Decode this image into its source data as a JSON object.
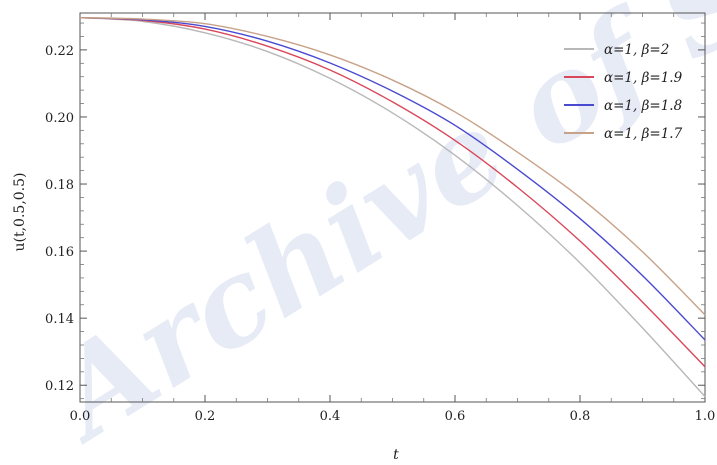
{
  "chart_data": {
    "type": "line",
    "xlabel": "t",
    "ylabel": "u(t,0.5,0.5)",
    "xlim": [
      0.0,
      1.0
    ],
    "ylim": [
      0.115,
      0.231
    ],
    "x_ticks": [
      "0.0",
      "0.2",
      "0.4",
      "0.6",
      "0.8",
      "1.0"
    ],
    "x_tick_values": [
      0.0,
      0.2,
      0.4,
      0.6,
      0.8,
      1.0
    ],
    "y_ticks": [
      "0.12",
      "0.14",
      "0.16",
      "0.18",
      "0.20",
      "0.22"
    ],
    "y_tick_values": [
      0.12,
      0.14,
      0.16,
      0.18,
      0.2,
      0.22
    ],
    "grid": false,
    "legend_position": "top-right",
    "x": [
      0.0,
      0.1,
      0.2,
      0.3,
      0.4,
      0.5,
      0.6,
      0.7,
      0.8,
      0.9,
      1.0
    ],
    "series": [
      {
        "name": "α=1, β=2",
        "color": "#b8b8b8",
        "values": [
          0.2296,
          0.2285,
          0.2251,
          0.2195,
          0.2115,
          0.2012,
          0.1886,
          0.1736,
          0.1565,
          0.1371,
          0.1166
        ]
      },
      {
        "name": "α=1, β=1.9",
        "color": "#d9485a",
        "values": [
          0.2296,
          0.2288,
          0.2262,
          0.2211,
          0.214,
          0.2045,
          0.193,
          0.179,
          0.163,
          0.1448,
          0.1255
        ]
      },
      {
        "name": "α=1, β=1.8",
        "color": "#4a4ad0",
        "values": [
          0.2296,
          0.229,
          0.227,
          0.2226,
          0.2161,
          0.2077,
          0.1975,
          0.1844,
          0.1697,
          0.1527,
          0.1335
        ]
      },
      {
        "name": "α=1, β=1.7",
        "color": "#c8a288",
        "values": [
          0.2296,
          0.2292,
          0.2278,
          0.224,
          0.2185,
          0.211,
          0.2015,
          0.1895,
          0.176,
          0.1598,
          0.141
        ]
      }
    ]
  },
  "watermark": {
    "text": "Archive of SID",
    "color": "#c9d3ea"
  }
}
